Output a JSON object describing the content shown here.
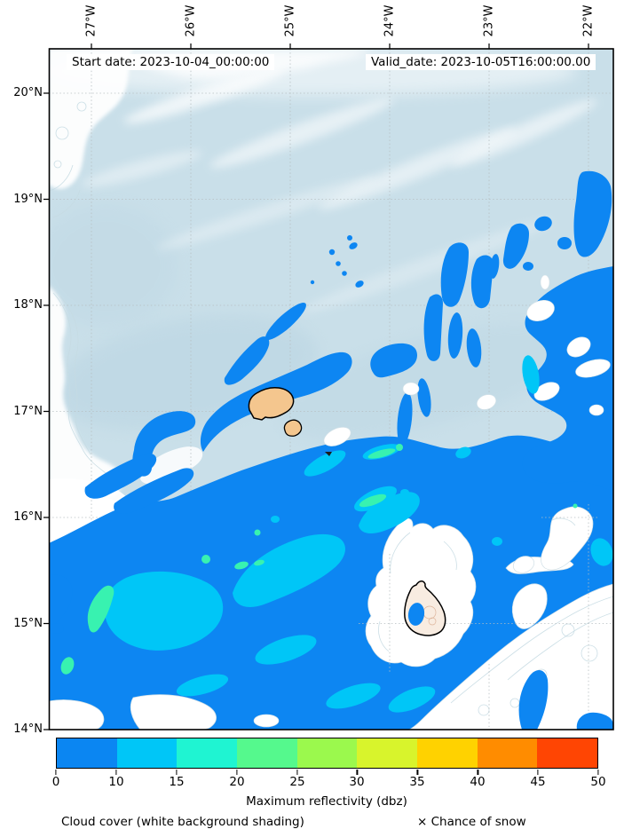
{
  "header": {
    "start_date_label": "Start date: 2023-10-04_00:00:00",
    "valid_date_label": "Valid_date: 2023-10-05T16:00:00.00"
  },
  "axes": {
    "lon_ticks": [
      "27°W",
      "26°W",
      "25°W",
      "24°W",
      "23°W",
      "22°W"
    ],
    "lat_ticks": [
      "20°N",
      "19°N",
      "18°N",
      "17°N",
      "16°N",
      "15°N",
      "14°N"
    ]
  },
  "colorbar": {
    "title": "Maximum reflectivity (dbz)",
    "tick_labels": [
      "0",
      "10",
      "15",
      "20",
      "25",
      "30",
      "35",
      "40",
      "45",
      "50"
    ],
    "levels": [
      0,
      10,
      15,
      20,
      25,
      30,
      35,
      40,
      45,
      50
    ],
    "segment_colors": [
      "#0b86f2",
      "#00c6f7",
      "#1ff4d2",
      "#55f98d",
      "#9bf94d",
      "#d8f42c",
      "#ffd200",
      "#ff8c00",
      "#ff4503"
    ]
  },
  "footer": {
    "cloud_note": "Cloud cover (white background shading)",
    "snow_marker": "×",
    "snow_label": "Chance of snow"
  },
  "palette": {
    "blue": "#0d86f2",
    "cyan": "#00c6f7",
    "green": "#38f2b0",
    "cloud": "#c9dfe9",
    "cloud-deep": "#b7d3e1",
    "contour": "#c6dbe3",
    "land": "#f4c68e",
    "land-pale": "#f8ece1",
    "grid": "#b6bfc1"
  },
  "chart_data": {
    "type": "filled-contour map",
    "title_annotations": [
      "Start date: 2023-10-04_00:00:00",
      "Valid_date: 2023-10-05T16:00:00.00"
    ],
    "x_axis": {
      "side": "top",
      "ticks": [
        "27°W",
        "26°W",
        "25°W",
        "24°W",
        "23°W",
        "22°W"
      ]
    },
    "y_axis": {
      "side": "left",
      "ticks": [
        "20°N",
        "19°N",
        "18°N",
        "17°N",
        "16°N",
        "15°N",
        "14°N"
      ]
    },
    "extent": {
      "west_lon": "27.4°W",
      "east_lon": "21.75°W",
      "south_lat": "14°N",
      "north_lat": "20.4°N"
    },
    "colorbar": {
      "label": "Maximum reflectivity (dbz)",
      "levels_dbz": [
        0,
        10,
        15,
        20,
        25,
        30,
        35,
        40,
        45,
        50
      ]
    },
    "grid": "dotted graticule every 1 degree",
    "content_summary": "Radar reflectivity cells of 0-10 dbz (blue) with embedded 10-15 dbz (cyan) and 15-25 dbz (green) cores over ocean southeast of a cloud-shaded region; light-blue background shading shows cloud cover, white shows clear background; island coastlines drawn in black with tan land fill"
  }
}
